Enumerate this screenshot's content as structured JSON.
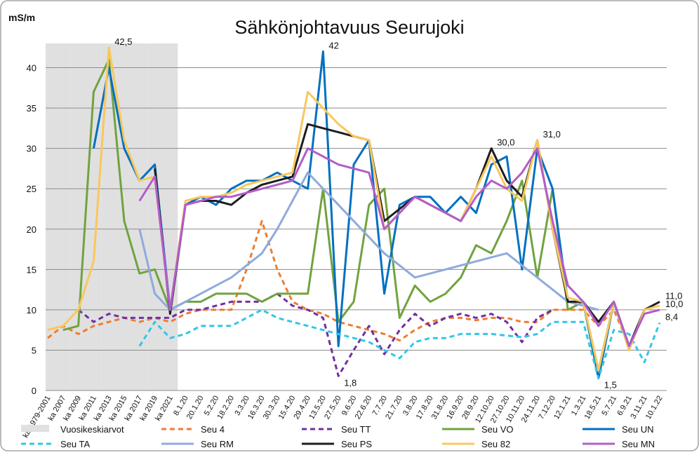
{
  "chart_data": {
    "type": "line",
    "title": "Sähkönjohtavuus Seurujoki",
    "y_label": "mS/m",
    "categories": [
      "ka 1979-2001",
      "ka 2007",
      "ka 2009",
      "ka 2011",
      "ka 2013",
      "ka 2015",
      "ka 2017",
      "ka 2019",
      "ka 2021",
      "8.1.20",
      "20.1.20",
      "5.2.20",
      "18.2.20",
      "3.3.20",
      "16.3.20",
      "30.3.20",
      "15.4.20",
      "29.4.20",
      "13.5.20",
      "27.5.20",
      "9.6.20",
      "22.6.20",
      "7.7.20",
      "21.7.20",
      "3.8.20",
      "17.8.20",
      "31.8.20",
      "16.9.20",
      "28.9.20",
      "12.10.20",
      "27.10.20",
      "10.11.20",
      "24.11.20",
      "7.12.20",
      "12.1.21",
      "1.3.21",
      "18.5.21",
      "5.7.21",
      "6.9.21",
      "3.11.21",
      "10.1.22"
    ],
    "ylim": [
      0,
      43
    ],
    "yticks": [
      0,
      5,
      10,
      15,
      20,
      25,
      30,
      35,
      40
    ],
    "grid": true,
    "series": [
      {
        "name": "Vuosikeskiarvot",
        "color": "#e0e0e0",
        "style": "area",
        "values": [
          43,
          43,
          43,
          43,
          43,
          43,
          43,
          43,
          43,
          null,
          null,
          null,
          null,
          null,
          null,
          null,
          null,
          null,
          null,
          null,
          null,
          null,
          null,
          null,
          null,
          null,
          null,
          null,
          null,
          null,
          null,
          null,
          null,
          null,
          null,
          null,
          null,
          null,
          null,
          null,
          null
        ]
      },
      {
        "name": "Seu 4",
        "color": "#ed7d31",
        "style": "dashed",
        "values": [
          6.5,
          8,
          7,
          8,
          8.5,
          9,
          8.5,
          9,
          8.5,
          9.5,
          10,
          10,
          10,
          15,
          21,
          15,
          11,
          10,
          9.5,
          8.5,
          8,
          7.5,
          7,
          6.2,
          7.5,
          8.5,
          9,
          9,
          8.7,
          9,
          9,
          8.5,
          8.5,
          10,
          10,
          10,
          8,
          10,
          5.5,
          9.5,
          10
        ]
      },
      {
        "name": "Seu TT",
        "color": "#7030a0",
        "style": "dashed",
        "values": [
          null,
          null,
          10,
          8.5,
          9.5,
          9,
          9,
          9,
          9,
          10,
          10,
          10.5,
          11,
          11,
          11,
          12,
          10.5,
          10,
          9,
          1.8,
          5,
          8,
          4.5,
          7.5,
          9.5,
          8,
          9,
          9.5,
          9,
          9.5,
          8.5,
          6,
          9,
          10,
          null,
          null,
          null,
          null,
          null,
          null,
          null
        ],
        "value_labels": [
          null,
          null,
          null,
          null,
          null,
          null,
          null,
          null,
          null,
          null,
          null,
          null,
          null,
          null,
          null,
          null,
          null,
          null,
          null,
          "1,8",
          null,
          null,
          null,
          null,
          null,
          null,
          null,
          null,
          null,
          null,
          null,
          null,
          null,
          null,
          null,
          null,
          null,
          null,
          null,
          null,
          null
        ]
      },
      {
        "name": "Seu VO",
        "color": "#70a33f",
        "style": "solid",
        "values": [
          null,
          7.5,
          8,
          37,
          41,
          21,
          14.5,
          15,
          10,
          11,
          11,
          12,
          12,
          12,
          11,
          12,
          12,
          12,
          25,
          8.5,
          11,
          23,
          25,
          9,
          13,
          11,
          12,
          14,
          18,
          17,
          21,
          26,
          14,
          25,
          10,
          11,
          2.5,
          11,
          5,
          10,
          null
        ]
      },
      {
        "name": "Seu UN",
        "color": "#0070c0",
        "style": "solid",
        "values": [
          null,
          null,
          null,
          30,
          40,
          30,
          26,
          28,
          10,
          23,
          24,
          23,
          25,
          26,
          26,
          27,
          26,
          25,
          42,
          5.5,
          28,
          31,
          12,
          23,
          24,
          24,
          22,
          24,
          22,
          28,
          29,
          15,
          30,
          25,
          11,
          11,
          1.5,
          11,
          5.5,
          10,
          null
        ],
        "value_labels": [
          null,
          null,
          null,
          null,
          null,
          null,
          null,
          null,
          null,
          null,
          null,
          null,
          null,
          null,
          null,
          null,
          null,
          null,
          "42",
          null,
          null,
          null,
          null,
          null,
          null,
          null,
          null,
          null,
          null,
          null,
          null,
          null,
          null,
          null,
          null,
          null,
          "1,5",
          null,
          null,
          null,
          null
        ]
      },
      {
        "name": "Seu TA",
        "color": "#33c6e8",
        "style": "dashed",
        "values": [
          null,
          null,
          null,
          null,
          null,
          null,
          5.5,
          8.5,
          6.5,
          7,
          8,
          8,
          8,
          9,
          10,
          9,
          8.5,
          8,
          7.5,
          7,
          6.5,
          6,
          5,
          4,
          6,
          6.5,
          6.5,
          7,
          7,
          7,
          6.8,
          6.6,
          7,
          8.5,
          8.5,
          8.5,
          1.5,
          7.5,
          7,
          3.5,
          8.4
        ],
        "value_labels": [
          null,
          null,
          null,
          null,
          null,
          null,
          null,
          null,
          null,
          null,
          null,
          null,
          null,
          null,
          null,
          null,
          null,
          null,
          null,
          null,
          null,
          null,
          null,
          null,
          null,
          null,
          null,
          null,
          null,
          null,
          null,
          null,
          null,
          null,
          null,
          null,
          null,
          null,
          null,
          null,
          "8,4"
        ]
      },
      {
        "name": "Seu RM",
        "color": "#8faadc",
        "style": "solid",
        "values": [
          null,
          null,
          null,
          null,
          null,
          null,
          20,
          12,
          10,
          11,
          12,
          13,
          14,
          15.5,
          17,
          20,
          23.5,
          27,
          25,
          23,
          21,
          19,
          17,
          15.5,
          14,
          14.5,
          15,
          15.5,
          16,
          16.5,
          17,
          15.5,
          14,
          12.5,
          11,
          10.5,
          10,
          null,
          null,
          null,
          null
        ]
      },
      {
        "name": "Seu PS",
        "color": "#1e1e1e",
        "style": "solid",
        "values": [
          null,
          null,
          null,
          null,
          null,
          null,
          null,
          27.5,
          9.5,
          23,
          23.5,
          23.5,
          23,
          24.5,
          25.5,
          26,
          26.5,
          33,
          32.5,
          32,
          31.5,
          31,
          21,
          22.5,
          24,
          23,
          22,
          21,
          25,
          30,
          26,
          24,
          31,
          20,
          11,
          11,
          8.5,
          11,
          5.5,
          10,
          11
        ],
        "value_labels": [
          null,
          null,
          null,
          null,
          null,
          null,
          null,
          null,
          null,
          null,
          null,
          null,
          null,
          null,
          null,
          null,
          null,
          null,
          null,
          null,
          null,
          null,
          null,
          null,
          null,
          null,
          null,
          null,
          null,
          "30,0",
          null,
          null,
          null,
          null,
          null,
          null,
          null,
          null,
          null,
          null,
          "11,0"
        ]
      },
      {
        "name": "Seu 82",
        "color": "#f9c75c",
        "style": "solid",
        "values": [
          7.5,
          8,
          10,
          16,
          42.5,
          31,
          26,
          26.5,
          10,
          23.5,
          24,
          24,
          24.5,
          25.5,
          26,
          26.5,
          27,
          37,
          35,
          33,
          31.5,
          31,
          20,
          22,
          24,
          23,
          22,
          21,
          25,
          29,
          25,
          23.5,
          31,
          20,
          11.5,
          11,
          2.5,
          11,
          5,
          10,
          10.5
        ],
        "value_labels": [
          null,
          null,
          null,
          null,
          "42,5",
          null,
          null,
          null,
          null,
          null,
          null,
          null,
          null,
          null,
          null,
          null,
          null,
          null,
          null,
          null,
          null,
          null,
          null,
          null,
          null,
          null,
          null,
          null,
          null,
          null,
          null,
          null,
          "31,0",
          null,
          null,
          null,
          null,
          null,
          null,
          null,
          null
        ]
      },
      {
        "name": "Seu MN",
        "color": "#b35ccc",
        "style": "solid",
        "values": [
          null,
          null,
          null,
          null,
          null,
          null,
          23.5,
          26.5,
          10,
          23,
          23.5,
          24,
          24,
          24.5,
          25,
          25.5,
          26,
          30,
          29,
          28,
          27.5,
          27,
          20,
          22,
          24,
          23,
          22,
          21,
          24,
          26,
          25,
          27,
          30,
          21,
          13,
          11,
          8,
          11,
          5.5,
          9.5,
          10
        ],
        "value_labels": [
          null,
          null,
          null,
          null,
          null,
          null,
          null,
          null,
          null,
          null,
          null,
          null,
          null,
          null,
          null,
          null,
          null,
          null,
          null,
          null,
          null,
          null,
          null,
          null,
          null,
          null,
          null,
          null,
          null,
          null,
          null,
          null,
          null,
          null,
          null,
          null,
          null,
          null,
          null,
          null,
          "10,0"
        ]
      }
    ]
  }
}
